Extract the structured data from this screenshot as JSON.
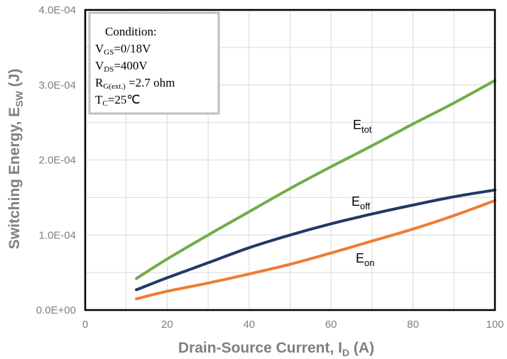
{
  "chart_data": {
    "type": "line",
    "xlabel_main": "Drain-Source Current, I",
    "xlabel_sub": "D",
    "xlabel_unit": " (A)",
    "ylabel_main": "Switching Energy, E",
    "ylabel_sub": "SW",
    "ylabel_unit": " (J)",
    "xlim": [
      0,
      100
    ],
    "ylim": [
      0,
      0.0004
    ],
    "x_ticks": [
      "0",
      "20",
      "40",
      "60",
      "80",
      "100"
    ],
    "x_tick_values": [
      0,
      20,
      40,
      60,
      80,
      100
    ],
    "y_ticks": [
      "0.0E+00",
      "1.0E-04",
      "2.0E-04",
      "3.0E-04",
      "4.0E-04"
    ],
    "y_tick_values": [
      0,
      0.0001,
      0.0002,
      0.0003,
      0.0004
    ],
    "grid": true,
    "series": [
      {
        "key": "etot",
        "label_main": "E",
        "label_sub": "tot",
        "color": "#70ad47",
        "x": [
          12.5,
          20,
          30,
          40,
          50,
          60,
          70,
          80,
          90,
          100
        ],
        "y": [
          4.2e-05,
          6.8e-05,
          0.0001,
          0.000131,
          0.000162,
          0.000191,
          0.000219,
          0.000248,
          0.000276,
          0.000306
        ]
      },
      {
        "key": "eoff",
        "label_main": "E",
        "label_sub": "off",
        "color": "#203864",
        "x": [
          12.5,
          20,
          30,
          40,
          50,
          60,
          70,
          80,
          90,
          100
        ],
        "y": [
          2.7e-05,
          4.3e-05,
          6.3e-05,
          8.3e-05,
          0.0001,
          0.000115,
          0.000128,
          0.00014,
          0.000151,
          0.00016
        ]
      },
      {
        "key": "eon",
        "label_main": "E",
        "label_sub": "on",
        "color": "#ed7d31",
        "x": [
          12.5,
          20,
          30,
          40,
          50,
          60,
          70,
          80,
          90,
          100
        ],
        "y": [
          1.5e-05,
          2.5e-05,
          3.6e-05,
          4.8e-05,
          6.1e-05,
          7.6e-05,
          9.2e-05,
          0.000108,
          0.000126,
          0.000146
        ]
      }
    ],
    "condition": {
      "title": "Condition:",
      "lines": [
        {
          "main": "V",
          "sub": "GS",
          "rest": "=0/18V"
        },
        {
          "main": "V",
          "sub": "DS",
          "rest": "=400V"
        },
        {
          "main": "R",
          "sub": "G(ext.)",
          "rest": " =2.7 ohm"
        },
        {
          "main": "T",
          "sub": "C",
          "rest": "=25℃"
        }
      ]
    }
  }
}
